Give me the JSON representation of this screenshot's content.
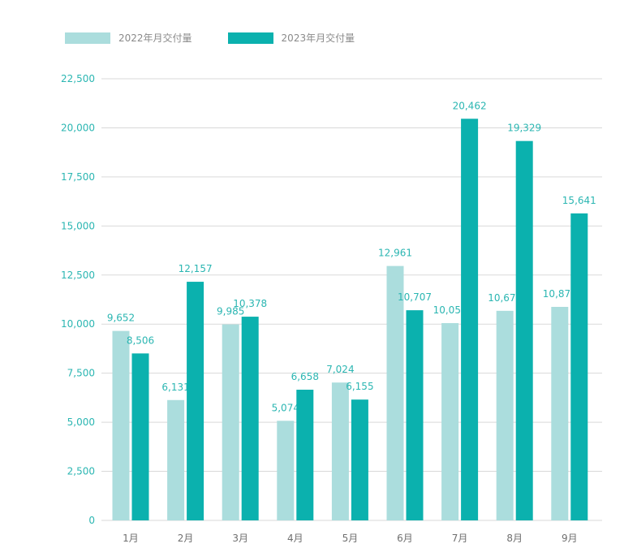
{
  "chart_data": {
    "type": "bar",
    "categories": [
      "1月",
      "2月",
      "3月",
      "4月",
      "5月",
      "6月",
      "7月",
      "8月",
      "9月"
    ],
    "series": [
      {
        "name": "2022年月交付量",
        "color": "#abdddd",
        "values": [
          9652,
          6131,
          9985,
          5074,
          7024,
          12961,
          10052,
          10677,
          10878
        ],
        "labels": [
          "9,652",
          "6,131",
          "9,985",
          "5,074",
          "7,024",
          "12,961",
          "10,052",
          "10,677",
          "10,878"
        ]
      },
      {
        "name": "2023年月交付量",
        "color": "#0bb1ae",
        "values": [
          8506,
          12157,
          10378,
          6658,
          6155,
          10707,
          20462,
          19329,
          15641
        ],
        "labels": [
          "8,506",
          "12,157",
          "10,378",
          "6,658",
          "6,155",
          "10,707",
          "20,462",
          "19,329",
          "15,641"
        ]
      }
    ],
    "yticks": [
      0,
      2500,
      5000,
      7500,
      10000,
      12500,
      15000,
      17500,
      20000,
      22500
    ],
    "ytick_labels": [
      "0",
      "2,500",
      "5,000",
      "7,500",
      "10,000",
      "12,500",
      "15,000",
      "17,500",
      "20,000",
      "22,500"
    ],
    "ylim": [
      0,
      22500
    ],
    "title": "",
    "xlabel": "",
    "ylabel": "",
    "grid": true,
    "legend_position": "top-left",
    "gridline_color": "#d9d9d9",
    "tick_label_color": "#2bb6b2"
  }
}
